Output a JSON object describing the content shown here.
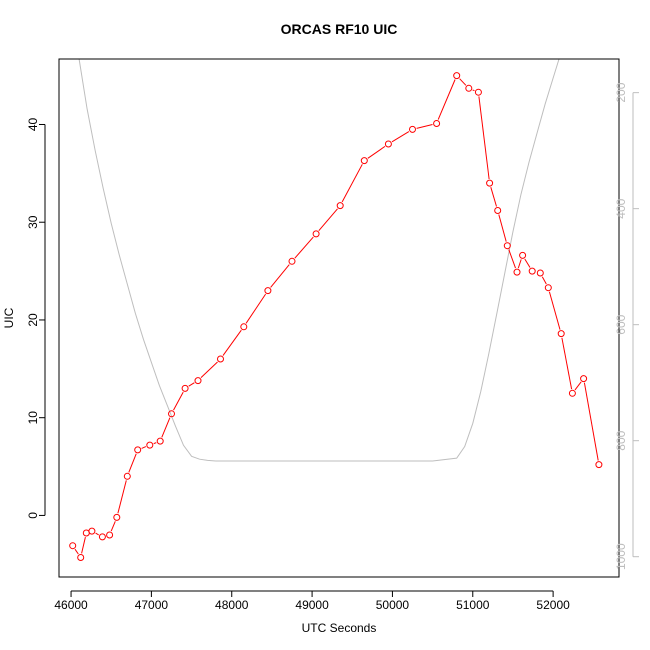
{
  "chart_data": {
    "type": "line",
    "title": "ORCAS RF10 UIC",
    "xlabel": "UTC Seconds",
    "ylabel": "UIC",
    "xlim": [
      45850,
      52820
    ],
    "ylim": [
      -6.3,
      46.7
    ],
    "x_ticks": [
      46000,
      47000,
      48000,
      49000,
      50000,
      51000,
      52000
    ],
    "y_ticks": [
      0,
      10,
      20,
      30,
      40
    ],
    "y2_ticks": [
      200,
      400,
      600,
      800,
      1000
    ],
    "y2lim_reversed": [
      142,
      1035
    ],
    "colors": {
      "series": "#ff0000",
      "secondary": "#bebebe"
    },
    "series": [
      {
        "x": [
          46020,
          46120,
          46190,
          46260,
          46390,
          46480,
          46570,
          46700,
          46830,
          46980,
          47110,
          47250,
          47420,
          47580,
          47860,
          48150,
          48450,
          48750,
          49050,
          49350,
          49650,
          49950,
          50250,
          50550,
          50800,
          50950,
          51070,
          51210,
          51310,
          51430,
          51550,
          51620,
          51740,
          51840,
          51940,
          52100,
          52240,
          52380,
          52570
        ],
        "values": [
          -3.1,
          -4.3,
          -1.8,
          -1.6,
          -2.2,
          -2.0,
          -0.2,
          4.0,
          6.7,
          7.2,
          7.6,
          10.4,
          13.0,
          13.8,
          16.0,
          19.3,
          23.0,
          26.0,
          28.8,
          31.7,
          36.3,
          38.0,
          39.5,
          40.1,
          45.0,
          43.7,
          43.3,
          34.0,
          31.2,
          27.6,
          24.9,
          26.6,
          25.0,
          24.8,
          23.3,
          18.6,
          12.5,
          14.0,
          5.2
        ]
      },
      {
        "axis": "right",
        "x": [
          46100,
          46200,
          46300,
          46400,
          46500,
          46600,
          46700,
          46800,
          46900,
          47000,
          47100,
          47200,
          47300,
          47400,
          47500,
          47600,
          47700,
          47800,
          48000,
          48500,
          49000,
          49500,
          50000,
          50500,
          50800,
          50900,
          51000,
          51100,
          51200,
          51300,
          51400,
          51500,
          51600,
          51700,
          51800,
          51900,
          52000,
          52100,
          52200,
          52250
        ],
        "values": [
          142,
          228,
          300,
          365,
          425,
          480,
          530,
          580,
          625,
          665,
          705,
          740,
          775,
          808,
          827,
          832,
          834,
          835,
          835,
          835,
          835,
          835,
          835,
          835,
          830,
          810,
          770,
          715,
          650,
          580,
          510,
          440,
          375,
          320,
          270,
          220,
          175,
          130,
          90,
          70
        ]
      }
    ]
  }
}
